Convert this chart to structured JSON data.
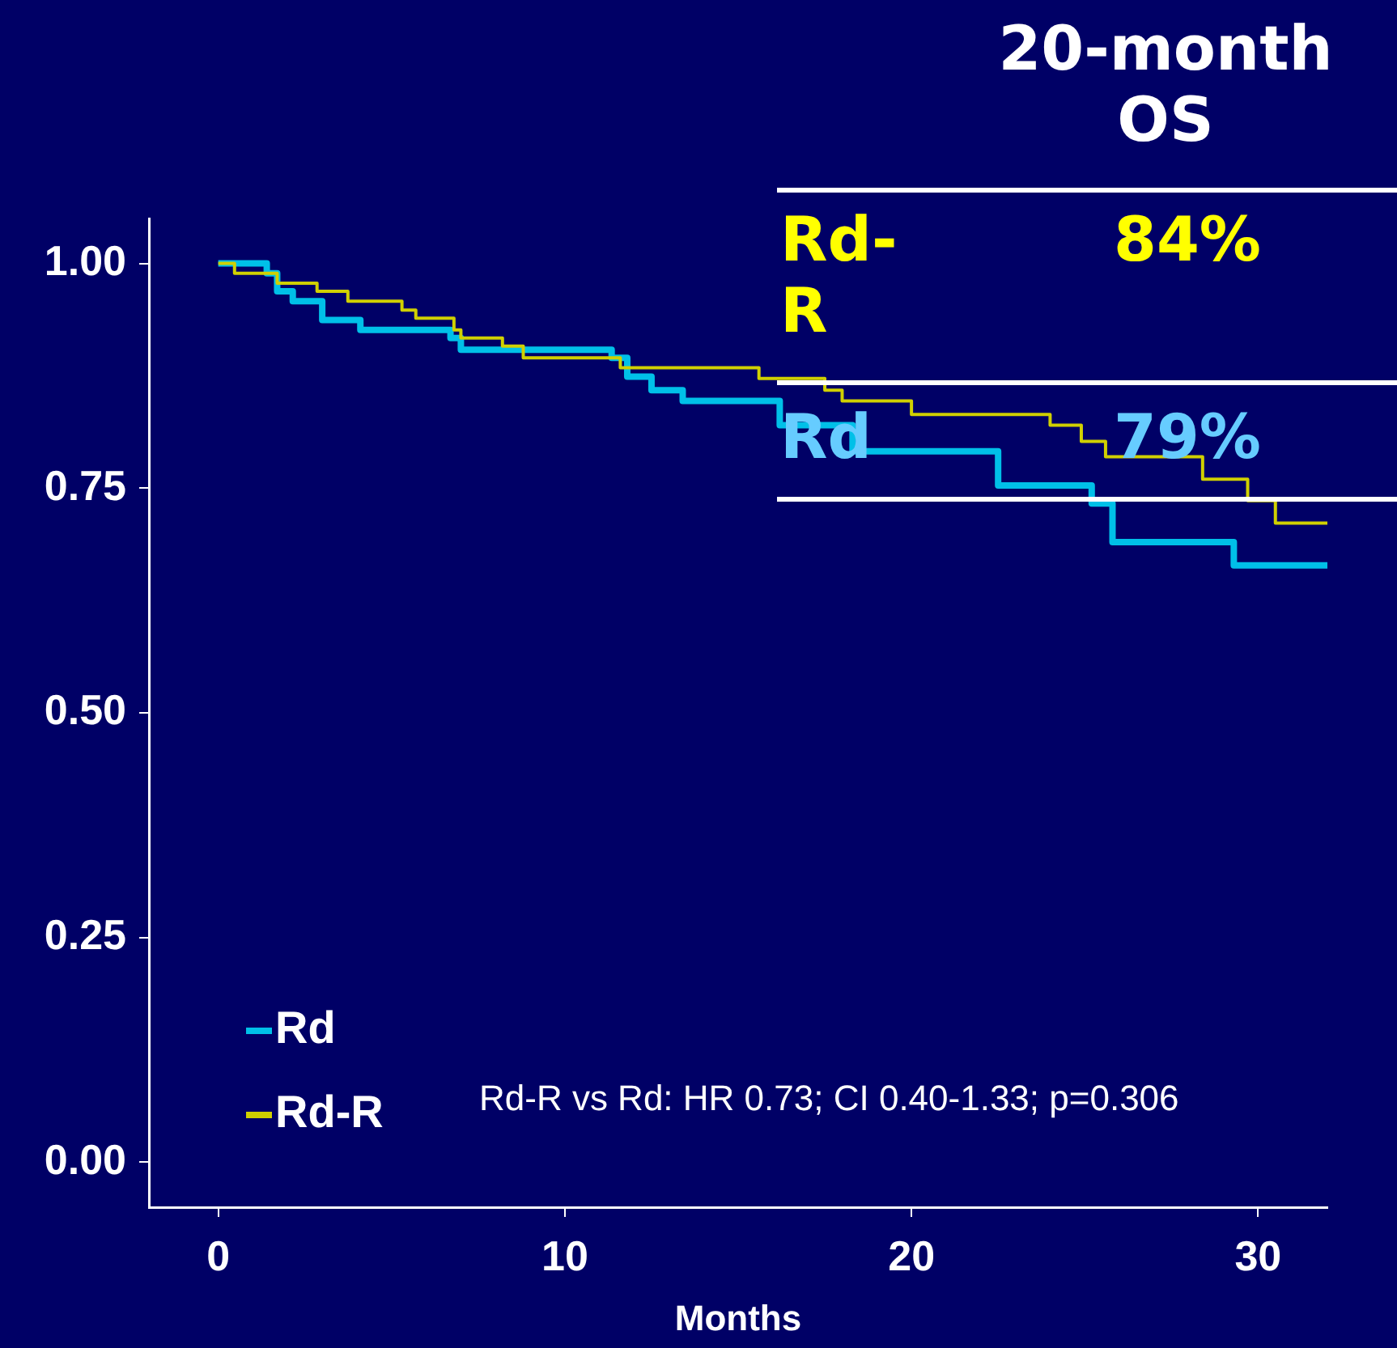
{
  "chart_data": {
    "type": "step",
    "xlabel": "Months",
    "xlim": [
      -2,
      32
    ],
    "xticks": [
      0,
      10,
      20,
      30
    ],
    "ylim": [
      -0.05,
      1.05
    ],
    "yticks": [
      {
        "value": 0,
        "label": "0.00"
      },
      {
        "value": 0.25,
        "label": "0.25"
      },
      {
        "value": 0.5,
        "label": "0.50"
      },
      {
        "value": 0.75,
        "label": "0.75"
      },
      {
        "value": 1,
        "label": "1.00"
      }
    ],
    "grid": false,
    "legend": "bottom left",
    "marker": "none",
    "line_style": "solid",
    "series": [
      {
        "name": "Rd",
        "color": "#00c0e8",
        "x": [
          0,
          1.4,
          1.7,
          2.15,
          3.0,
          4.1,
          6.7,
          7.0,
          11.35,
          11.8,
          12.5,
          13.4,
          16.2,
          18.3,
          22.5,
          25.2,
          25.8,
          29.3,
          32
        ],
        "values": [
          1.0,
          0.989,
          0.969,
          0.958,
          0.937,
          0.926,
          0.917,
          0.904,
          0.895,
          0.874,
          0.859,
          0.847,
          0.82,
          0.791,
          0.753,
          0.733,
          0.69,
          0.664,
          0.664
        ]
      },
      {
        "name": "Rd-R",
        "color": "#d0d000",
        "x": [
          0,
          0.47,
          1.7,
          2.85,
          3.74,
          5.3,
          5.7,
          6.8,
          7.0,
          8.2,
          8.8,
          11.6,
          15.6,
          17.5,
          18.0,
          20.0,
          24.0,
          24.9,
          25.6,
          28.4,
          29.7,
          30.5,
          32
        ],
        "values": [
          1.0,
          0.989,
          0.978,
          0.969,
          0.958,
          0.948,
          0.939,
          0.926,
          0.917,
          0.908,
          0.895,
          0.884,
          0.872,
          0.859,
          0.847,
          0.832,
          0.82,
          0.802,
          0.785,
          0.76,
          0.736,
          0.711,
          0.711
        ]
      }
    ],
    "annotations": [
      "20-month OS",
      "Rd-R",
      "84%",
      "Rd",
      "79%",
      "Rd-R vs Rd: HR 0.73; CI 0.40-1.33; p=0.306"
    ]
  }
}
